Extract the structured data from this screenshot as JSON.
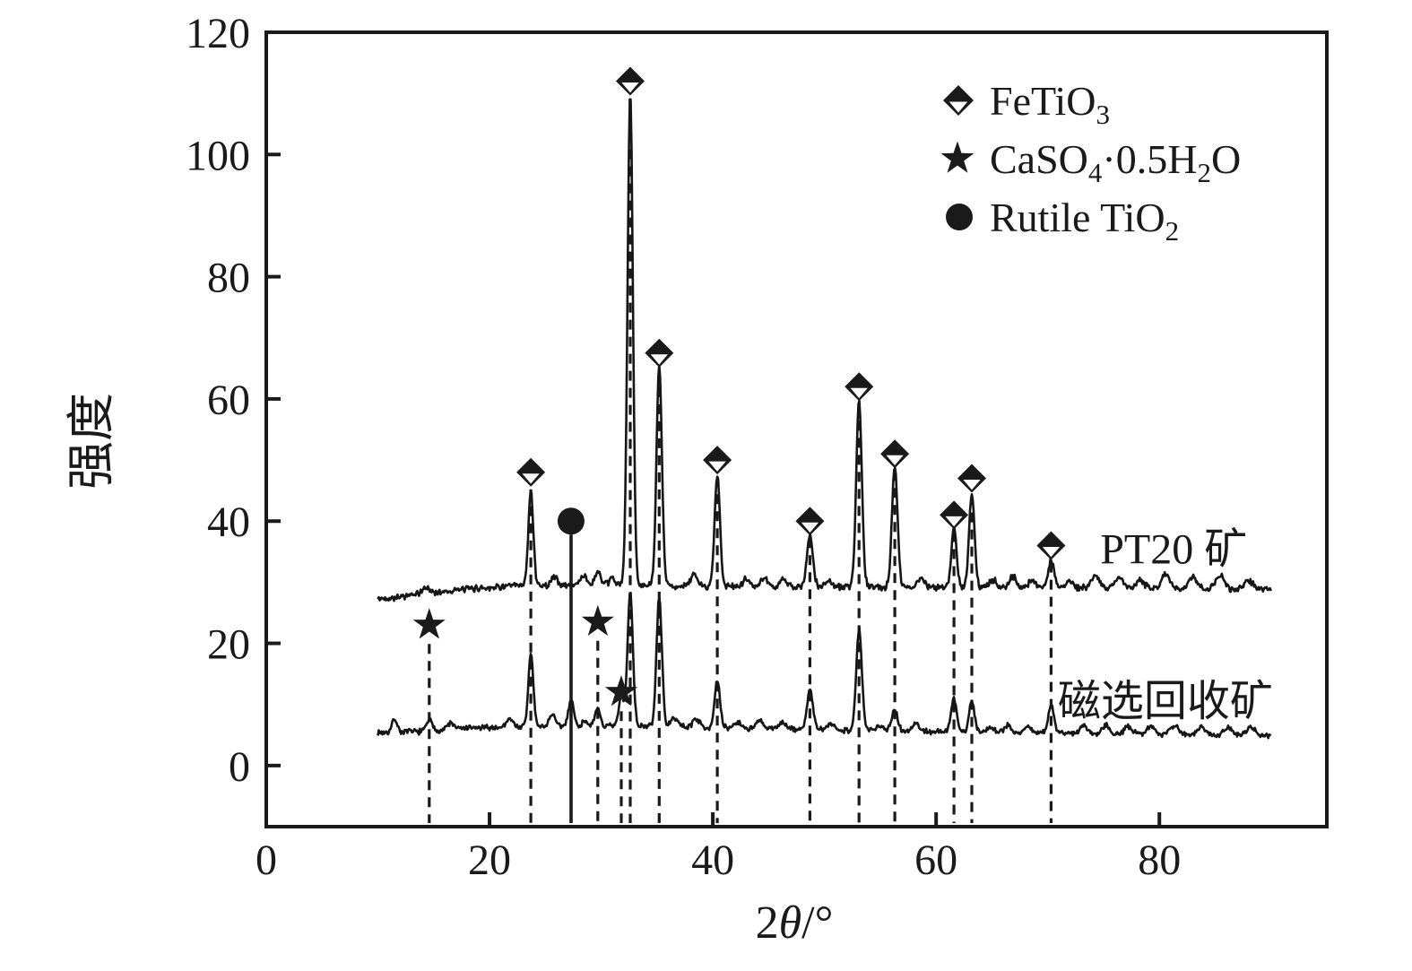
{
  "figure": {
    "background": "#ffffff",
    "ink_color": "#1a1a1a",
    "trace_color": "#161616"
  },
  "axes": {
    "x": {
      "title_segments": [
        {
          "t": "2",
          "italic": false
        },
        {
          "t": "θ",
          "italic": true
        },
        {
          "t": "/°",
          "italic": false
        }
      ],
      "ticks": [
        0,
        20,
        40,
        60,
        80
      ]
    },
    "y": {
      "title": "强度",
      "ticks": [
        0,
        20,
        40,
        60,
        80,
        100,
        120
      ]
    }
  },
  "legend": {
    "items": [
      {
        "icon": "half-diamond-icon",
        "segments": [
          {
            "t": "FeTiO"
          },
          {
            "t": "3",
            "sub": true
          }
        ]
      },
      {
        "icon": "star-icon",
        "segments": [
          {
            "t": "CaSO"
          },
          {
            "t": "4",
            "sub": true
          },
          {
            "t": "·0.5H"
          },
          {
            "t": "2",
            "sub": true
          },
          {
            "t": "O"
          }
        ]
      },
      {
        "icon": "circle-icon",
        "segments": [
          {
            "t": "Rutile TiO"
          },
          {
            "t": "2",
            "sub": true
          }
        ]
      }
    ]
  },
  "series_labels": [
    {
      "text": "PT20 矿",
      "theta": 74.7,
      "v": 33.1
    },
    {
      "text": "磁选回收矿",
      "theta": 70.9,
      "v": 8.2
    }
  ],
  "chart_data": {
    "type": "line",
    "title": "",
    "xlabel": "2θ/°",
    "ylabel": "强度",
    "xlim": [
      0,
      95
    ],
    "ylim": [
      -10,
      120
    ],
    "grid": false,
    "legend_position": "top-right-inside",
    "x_range_of_traces": [
      10,
      90
    ],
    "series": [
      {
        "name": "PT20 矿",
        "noise": 0.62,
        "seed": 42,
        "baseline": [
          [
            10,
            27.2
          ],
          [
            14,
            28.1
          ],
          [
            18,
            28.9
          ],
          [
            22,
            29.4
          ],
          [
            26,
            29.5
          ],
          [
            32,
            29.5
          ],
          [
            40,
            29.3
          ],
          [
            55,
            29.2
          ],
          [
            70,
            29.1
          ],
          [
            90,
            28.8
          ]
        ],
        "peaks": [
          [
            14.3,
            1.0,
            0.3
          ],
          [
            23.7,
            15.5,
            0.22
          ],
          [
            25.8,
            1.5,
            0.25
          ],
          [
            28.4,
            1.6,
            0.3
          ],
          [
            29.7,
            2.2,
            0.25
          ],
          [
            31.0,
            1.2,
            0.25
          ],
          [
            32.6,
            80.5,
            0.24
          ],
          [
            35.2,
            36.0,
            0.24
          ],
          [
            38.3,
            1.9,
            0.3
          ],
          [
            40.4,
            18.2,
            0.24
          ],
          [
            43.0,
            1.2,
            0.3
          ],
          [
            44.6,
            1.3,
            0.3
          ],
          [
            46.3,
            1.2,
            0.3
          ],
          [
            48.7,
            8.3,
            0.26
          ],
          [
            50.4,
            1.0,
            0.3
          ],
          [
            53.1,
            30.3,
            0.25
          ],
          [
            56.3,
            19.8,
            0.25
          ],
          [
            58.6,
            1.5,
            0.3
          ],
          [
            61.6,
            9.8,
            0.24
          ],
          [
            63.2,
            15.3,
            0.24
          ],
          [
            65.1,
            1.2,
            0.3
          ],
          [
            66.9,
            1.8,
            0.3
          ],
          [
            68.6,
            1.3,
            0.3
          ],
          [
            70.3,
            4.4,
            0.26
          ],
          [
            71.9,
            1.3,
            0.3
          ],
          [
            74.3,
            2.2,
            0.35
          ],
          [
            76.4,
            1.8,
            0.35
          ],
          [
            78.3,
            1.4,
            0.35
          ],
          [
            80.6,
            2.3,
            0.4
          ],
          [
            83.0,
            1.8,
            0.4
          ],
          [
            85.4,
            2.2,
            0.4
          ],
          [
            88.0,
            1.4,
            0.4
          ]
        ]
      },
      {
        "name": "磁选回收矿",
        "noise": 0.55,
        "seed": 7,
        "baseline": [
          [
            10,
            5.4
          ],
          [
            14,
            5.6
          ],
          [
            18,
            6.1
          ],
          [
            22,
            6.3
          ],
          [
            26,
            6.4
          ],
          [
            30,
            6.4
          ],
          [
            34,
            6.5
          ],
          [
            40,
            6.2
          ],
          [
            48,
            5.9
          ],
          [
            55,
            5.7
          ],
          [
            62,
            5.5
          ],
          [
            70,
            5.3
          ],
          [
            80,
            5.1
          ],
          [
            90,
            4.9
          ]
        ],
        "peaks": [
          [
            11.5,
            2.2,
            0.22
          ],
          [
            14.6,
            1.8,
            0.24
          ],
          [
            16.5,
            1.0,
            0.3
          ],
          [
            21.8,
            1.5,
            0.28
          ],
          [
            23.7,
            12.0,
            0.22
          ],
          [
            25.6,
            2.0,
            0.26
          ],
          [
            27.3,
            4.4,
            0.24
          ],
          [
            28.6,
            1.0,
            0.25
          ],
          [
            29.7,
            3.0,
            0.22
          ],
          [
            31.8,
            4.8,
            0.22
          ],
          [
            32.6,
            22.0,
            0.24
          ],
          [
            35.2,
            21.0,
            0.24
          ],
          [
            36.6,
            1.5,
            0.28
          ],
          [
            38.5,
            1.4,
            0.3
          ],
          [
            40.4,
            7.5,
            0.24
          ],
          [
            42.2,
            1.0,
            0.3
          ],
          [
            44.2,
            1.2,
            0.3
          ],
          [
            46.2,
            1.2,
            0.3
          ],
          [
            48.7,
            6.6,
            0.26
          ],
          [
            50.6,
            1.0,
            0.3
          ],
          [
            53.1,
            16.5,
            0.25
          ],
          [
            55.0,
            1.0,
            0.3
          ],
          [
            56.3,
            3.6,
            0.26
          ],
          [
            58.2,
            1.3,
            0.3
          ],
          [
            61.6,
            5.6,
            0.24
          ],
          [
            63.2,
            5.1,
            0.24
          ],
          [
            64.9,
            1.0,
            0.3
          ],
          [
            66.4,
            1.2,
            0.3
          ],
          [
            68.2,
            1.0,
            0.3
          ],
          [
            70.3,
            4.6,
            0.26
          ],
          [
            73.2,
            1.3,
            0.35
          ],
          [
            75.2,
            1.4,
            0.35
          ],
          [
            77.2,
            1.1,
            0.35
          ],
          [
            79.2,
            1.2,
            0.4
          ],
          [
            81.3,
            1.5,
            0.4
          ],
          [
            83.8,
            1.3,
            0.4
          ],
          [
            86.2,
            1.1,
            0.4
          ],
          [
            88.2,
            1.2,
            0.4
          ]
        ]
      }
    ],
    "markers": {
      "FeTiO3_diamonds": [
        [
          23.7,
          48
        ],
        [
          32.6,
          112
        ],
        [
          35.2,
          67.5
        ],
        [
          40.4,
          50
        ],
        [
          48.7,
          40
        ],
        [
          53.1,
          62
        ],
        [
          56.3,
          51
        ],
        [
          61.6,
          41
        ],
        [
          63.2,
          47
        ],
        [
          70.3,
          36
        ]
      ],
      "CaSO4_stars": [
        [
          14.6,
          23
        ],
        [
          29.7,
          23.5
        ],
        [
          31.8,
          12
        ]
      ],
      "Rutile_circles": [
        [
          27.3,
          40
        ]
      ],
      "reference_line_style": {
        "diamonds": "dashed",
        "stars": "dashed",
        "circles": "solid"
      }
    }
  }
}
